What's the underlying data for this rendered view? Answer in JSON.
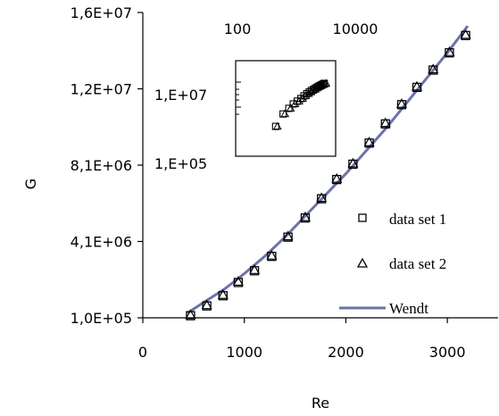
{
  "chart_data": {
    "type": "scatter",
    "xlabel": "Re",
    "ylabel": "G",
    "xlim": [
      0,
      3500
    ],
    "ylim": [
      100000,
      16000000
    ],
    "x_ticks": [
      "0",
      "1000",
      "2000",
      "3000"
    ],
    "y_ticks": [
      "1,0E+05",
      "4,1E+06",
      "8,1E+06",
      "1,2E+07",
      "1,6E+07"
    ],
    "legend_position": "bottom-right",
    "series": [
      {
        "name": "data set 1",
        "marker": "square",
        "x": [
          470,
          630,
          790,
          940,
          1100,
          1270,
          1430,
          1600,
          1760,
          1910,
          2070,
          2230,
          2390,
          2550,
          2700,
          2860,
          3020,
          3180
        ],
        "y": [
          210000,
          720000,
          1250000,
          1940000,
          2550000,
          3300000,
          4300000,
          5300000,
          6300000,
          7300000,
          8100000,
          9200000,
          10200000,
          11200000,
          12100000,
          13000000,
          13900000,
          14800000
        ]
      },
      {
        "name": "data set 2",
        "marker": "triangle",
        "x": [
          470,
          630,
          790,
          940,
          1100,
          1270,
          1430,
          1600,
          1760,
          1910,
          2070,
          2230,
          2390,
          2550,
          2700,
          2860,
          3020,
          3180
        ],
        "y": [
          210000,
          720000,
          1250000,
          1940000,
          2550000,
          3300000,
          4300000,
          5300000,
          6300000,
          7300000,
          8100000,
          9200000,
          10200000,
          11200000,
          12100000,
          13000000,
          13900000,
          14800000
        ]
      },
      {
        "name": "Wendt",
        "marker": "line",
        "color": "#6b73a8",
        "x": [
          440,
          600,
          800,
          1000,
          1200,
          1400,
          1600,
          1800,
          2000,
          2200,
          2400,
          2600,
          2800,
          3000,
          3200
        ],
        "y": [
          350000,
          900000,
          1580000,
          2400000,
          3300000,
          4300000,
          5400000,
          6500000,
          7600000,
          8800000,
          10000000,
          11300000,
          12600000,
          13900000,
          15300000
        ]
      }
    ],
    "inset": {
      "type": "scatter",
      "x_scale": "log",
      "y_scale": "log",
      "x_ticks": [
        "100",
        "10000"
      ],
      "y_ticks": [
        "1,E+05",
        "1,E+07"
      ]
    }
  }
}
